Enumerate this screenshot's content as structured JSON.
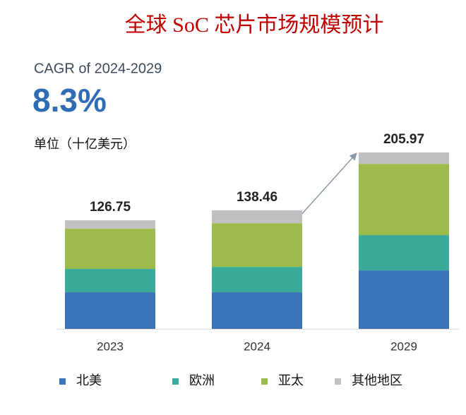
{
  "chart_data": {
    "type": "stacked_bar",
    "title": "全球 SoC 芯片市场规模预计",
    "cagr_label": "CAGR of 2024-2029",
    "cagr": "8.3%",
    "unit_label": "单位（十亿美元）",
    "categories": [
      "2023",
      "2024",
      "2029"
    ],
    "totals": [
      126.75,
      138.46,
      205.97
    ],
    "series": [
      {
        "name": "北美",
        "color": "#3b74b9",
        "values": [
          42.8,
          42.8,
          68.3
        ]
      },
      {
        "name": "欧洲",
        "color": "#3aab99",
        "values": [
          27.2,
          29.6,
          41.2
        ]
      },
      {
        "name": "亚太",
        "color": "#9dbb4b",
        "values": [
          46.9,
          51.0,
          83.1
        ]
      },
      {
        "name": "其他地区",
        "color": "#c0c0c0",
        "values": [
          9.85,
          15.06,
          13.37
        ]
      }
    ]
  }
}
